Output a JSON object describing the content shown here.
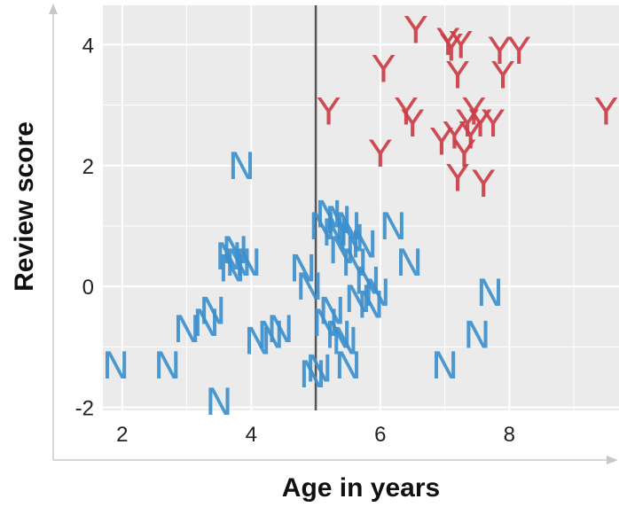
{
  "chart_data": {
    "type": "scatter",
    "title": "",
    "xlabel": "Age in years",
    "ylabel": "Review score",
    "xlim": [
      1.7,
      9.7
    ],
    "ylim": [
      -2.05,
      4.65
    ],
    "x_ticks": [
      "2",
      "4",
      "6",
      "8"
    ],
    "y_ticks": [
      "-2",
      "0",
      "2",
      "4"
    ],
    "grid": true,
    "threshold_line": {
      "axis": "x",
      "value": 5.0,
      "color": "#555555"
    },
    "series": [
      {
        "marker": "N",
        "color": "#3d8fcc",
        "points": [
          [
            1.9,
            -1.3
          ],
          [
            2.7,
            -1.3
          ],
          [
            3.0,
            -0.7
          ],
          [
            3.3,
            -0.6
          ],
          [
            3.4,
            -0.4
          ],
          [
            3.5,
            -1.9
          ],
          [
            3.65,
            0.5
          ],
          [
            3.7,
            0.3
          ],
          [
            3.75,
            0.6
          ],
          [
            3.8,
            0.4
          ],
          [
            3.85,
            2.0
          ],
          [
            3.95,
            0.4
          ],
          [
            4.1,
            -0.9
          ],
          [
            4.3,
            -0.8
          ],
          [
            4.45,
            -0.7
          ],
          [
            4.8,
            0.3
          ],
          [
            4.9,
            0.0
          ],
          [
            4.95,
            -1.45
          ],
          [
            5.05,
            -1.35
          ],
          [
            5.1,
            1.0
          ],
          [
            5.15,
            -0.6
          ],
          [
            5.2,
            1.2
          ],
          [
            5.25,
            -0.4
          ],
          [
            5.3,
            0.9
          ],
          [
            5.35,
            1.1
          ],
          [
            5.35,
            -0.8
          ],
          [
            5.4,
            0.6
          ],
          [
            5.45,
            -0.9
          ],
          [
            5.5,
            -1.3
          ],
          [
            5.5,
            1.0
          ],
          [
            5.55,
            0.8
          ],
          [
            5.6,
            0.4
          ],
          [
            5.65,
            -0.2
          ],
          [
            5.75,
            0.7
          ],
          [
            5.8,
            0.1
          ],
          [
            5.85,
            -0.3
          ],
          [
            5.95,
            -0.1
          ],
          [
            6.2,
            1.0
          ],
          [
            6.45,
            0.4
          ],
          [
            7.0,
            -1.3
          ],
          [
            7.5,
            -0.8
          ],
          [
            7.7,
            -0.1
          ]
        ]
      },
      {
        "marker": "Y",
        "color": "#cc3d47",
        "points": [
          [
            5.2,
            2.9
          ],
          [
            6.0,
            2.2
          ],
          [
            6.05,
            3.6
          ],
          [
            6.4,
            2.9
          ],
          [
            6.5,
            2.7
          ],
          [
            6.55,
            4.25
          ],
          [
            6.95,
            2.4
          ],
          [
            7.05,
            4.05
          ],
          [
            7.1,
            3.95
          ],
          [
            7.15,
            2.5
          ],
          [
            7.2,
            1.8
          ],
          [
            7.2,
            3.5
          ],
          [
            7.25,
            4.0
          ],
          [
            7.3,
            2.2
          ],
          [
            7.35,
            2.7
          ],
          [
            7.4,
            2.5
          ],
          [
            7.45,
            2.9
          ],
          [
            7.55,
            2.7
          ],
          [
            7.6,
            1.7
          ],
          [
            7.75,
            2.7
          ],
          [
            7.85,
            3.9
          ],
          [
            7.9,
            3.5
          ],
          [
            8.15,
            3.9
          ],
          [
            9.5,
            2.9
          ]
        ]
      }
    ]
  }
}
